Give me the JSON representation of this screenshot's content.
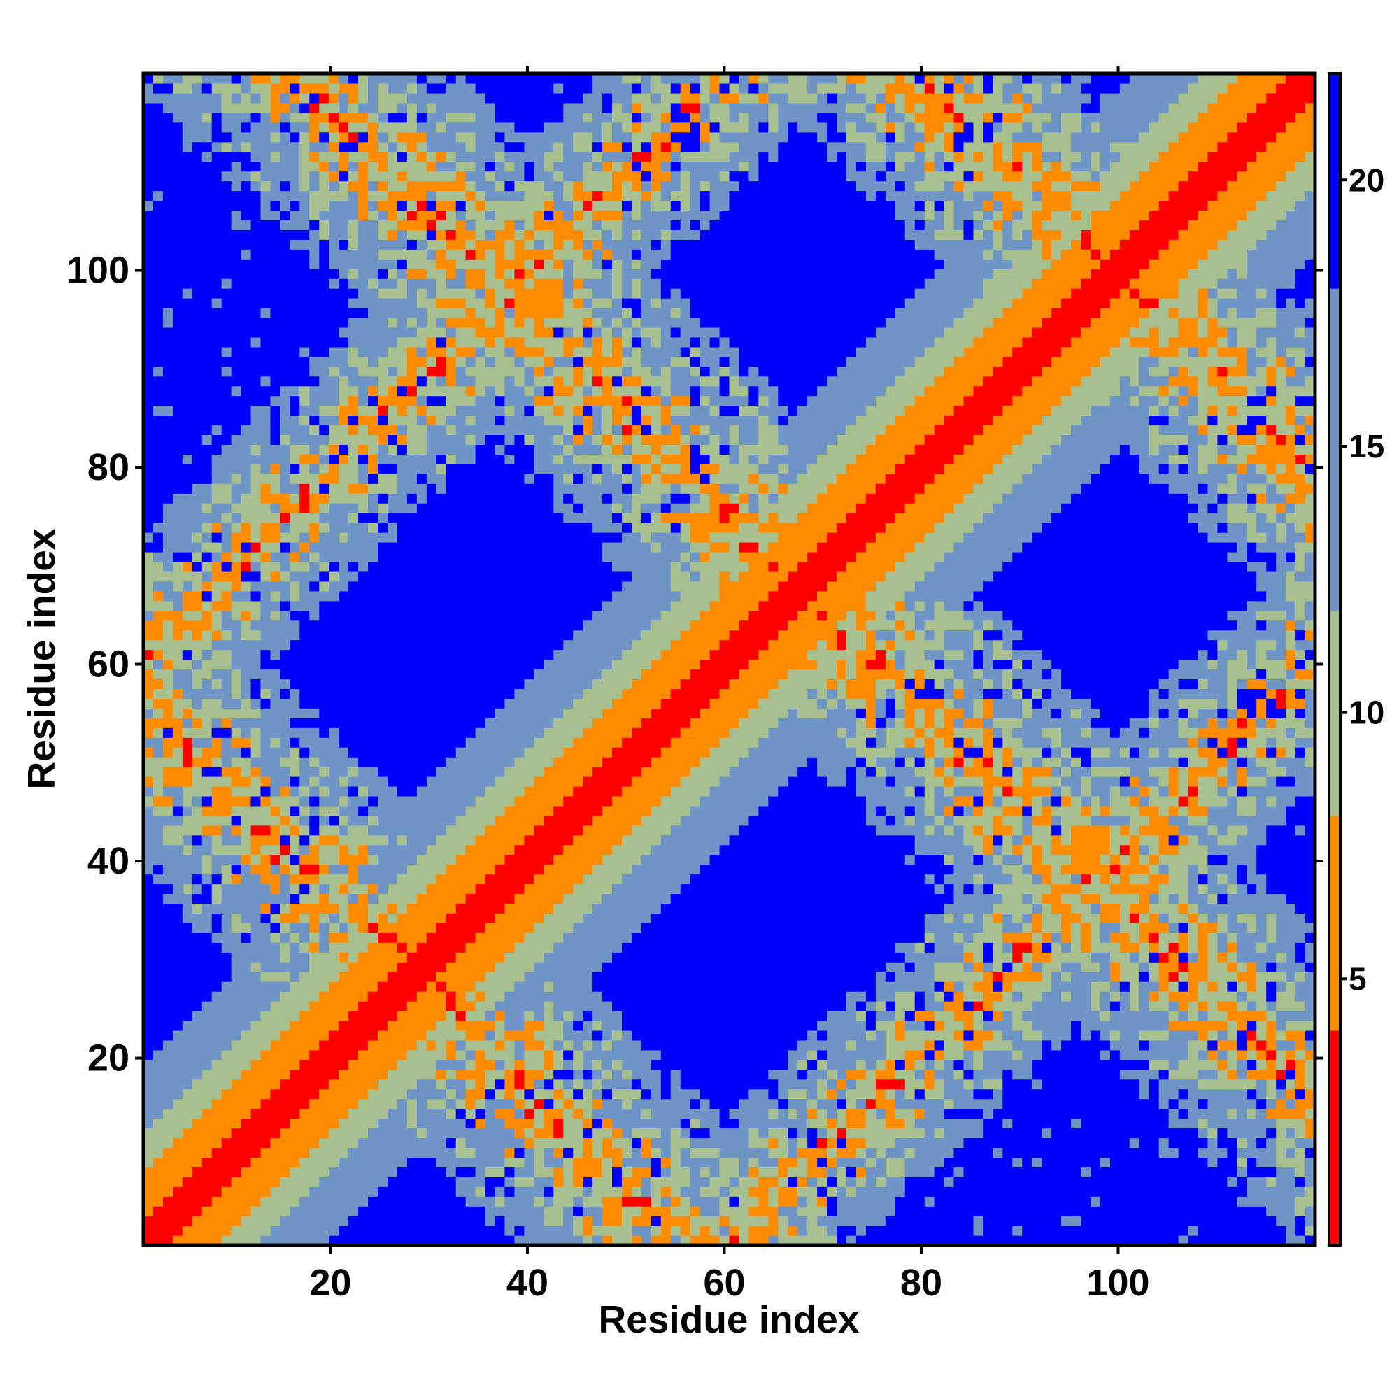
{
  "chart_data": {
    "type": "heatmap",
    "title": "",
    "xlabel": "Residue index",
    "ylabel": "Residue index",
    "n_residues": 120,
    "xlim": [
      1,
      120
    ],
    "ylim": [
      1,
      120
    ],
    "x_ticks": [
      20,
      40,
      60,
      80,
      100
    ],
    "y_ticks": [
      20,
      40,
      60,
      80,
      100
    ],
    "colorbar": {
      "ticks": [
        5,
        10,
        15,
        20
      ],
      "range": [
        0,
        22
      ],
      "orientation": "vertical",
      "placement": "right"
    },
    "colors": {
      "near": "#ff0000",
      "close": "#ff8c00",
      "mid": "#a8c090",
      "far": "#6f95c6",
      "background": "#0000ff"
    },
    "distance_bins": [
      {
        "max": 4,
        "color": "#ff0000"
      },
      {
        "max": 8,
        "color": "#ff8c00"
      },
      {
        "max": 12,
        "color": "#a8c090"
      },
      {
        "max": 18,
        "color": "#6f95c6"
      },
      {
        "max": 22,
        "color": "#0000ff"
      }
    ],
    "features": [
      {
        "kind": "diagonal",
        "description": "high contact band along the main diagonal"
      },
      {
        "kind": "anti-diagonal-band",
        "sum_center": 56,
        "width": 18
      },
      {
        "kind": "anti-diagonal-band",
        "sum_center": 136,
        "width": 18
      },
      {
        "kind": "anti-diagonal-band",
        "sum_center": 200,
        "width": 18
      },
      {
        "kind": "off-diagonal-band",
        "diff_center": 60,
        "width": 14
      }
    ]
  }
}
